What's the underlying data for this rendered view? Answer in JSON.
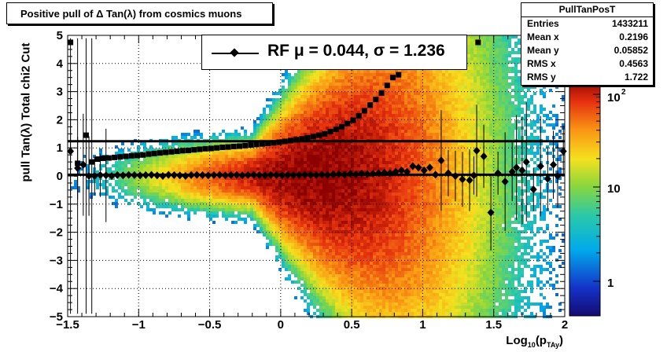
{
  "title": "Positive pull of Δ Tan(λ) from cosmics muons",
  "stats": {
    "name": "PullTanPosT",
    "rows": [
      {
        "label": "Entries",
        "value": "1433211"
      },
      {
        "label": "Mean x",
        "value": "0.2196"
      },
      {
        "label": "Mean y",
        "value": "0.05852"
      },
      {
        "label": "RMS x",
        "value": "0.4563"
      },
      {
        "label": "RMS y",
        "value": "1.722"
      }
    ]
  },
  "legend": {
    "text": "RF μ =  0.044, σ =   1.236"
  },
  "axes": {
    "ylabel": "pull Tan(λ)  Total chi2 Cut",
    "xlabel": "Log10(pTAy)"
  },
  "chart_data": {
    "type": "heatmap",
    "title": "Positive pull of Δ Tan(λ) from cosmics muons",
    "xlabel": "Log10(pTAy)",
    "ylabel": "pull Tan(λ)  Total chi2 Cut",
    "xlim": [
      -1.5,
      2
    ],
    "ylim": [
      -5,
      5
    ],
    "x_ticks": [
      "−1.5",
      "−1",
      "−0.5",
      "0",
      "0.5",
      "1",
      "1.5",
      "2"
    ],
    "y_ticks": [
      "−5",
      "−4",
      "−3",
      "−2",
      "−1",
      "0",
      "1",
      "2",
      "3",
      "4",
      "5"
    ],
    "z_scale": "log",
    "z_ticks": [
      "1",
      "10",
      "10^2"
    ],
    "horizontal_lines": [
      1.236,
      0.044
    ],
    "series": [
      {
        "name": "sigma",
        "x": [
          -1.48,
          -1.43,
          -1.37,
          -1.33,
          -1.29,
          -1.25,
          -1.21,
          -1.17,
          -1.13,
          -1.09,
          -1.05,
          -1.01,
          -0.97,
          -0.93,
          -0.89,
          -0.85,
          -0.81,
          -0.77,
          -0.73,
          -0.69,
          -0.65,
          -0.61,
          -0.57,
          -0.53,
          -0.49,
          -0.45,
          -0.41,
          -0.37,
          -0.33,
          -0.29,
          -0.25,
          -0.21,
          -0.17,
          -0.13,
          -0.09,
          -0.05,
          -0.01,
          0.03,
          0.07,
          0.11,
          0.15,
          0.19,
          0.23,
          0.27,
          0.31,
          0.35,
          0.39,
          0.43,
          0.47,
          0.51,
          0.55,
          0.59,
          0.63,
          0.67,
          0.71,
          0.75,
          0.79,
          0.83,
          1.39
        ],
        "y": [
          4.75,
          0.45,
          1.45,
          0.5,
          0.6,
          0.63,
          0.64,
          0.66,
          0.68,
          0.7,
          0.72,
          0.73,
          0.75,
          0.78,
          0.8,
          0.82,
          0.84,
          0.86,
          0.88,
          0.9,
          0.91,
          0.93,
          0.95,
          0.97,
          0.98,
          1.0,
          1.02,
          1.03,
          1.05,
          1.06,
          1.08,
          1.1,
          1.12,
          1.14,
          1.16,
          1.18,
          1.2,
          1.23,
          1.26,
          1.29,
          1.32,
          1.36,
          1.4,
          1.45,
          1.5,
          1.58,
          1.66,
          1.75,
          1.86,
          1.98,
          2.14,
          2.32,
          2.52,
          2.72,
          2.95,
          3.22,
          3.5,
          3.6,
          4.75
        ]
      },
      {
        "name": "mean",
        "x": [
          -1.48,
          -1.43,
          -1.39,
          -1.35,
          -1.31,
          -1.27,
          -1.23,
          -1.19,
          -1.15,
          -1.11,
          -1.07,
          -1.03,
          -0.99,
          -0.95,
          -0.91,
          -0.87,
          -0.83,
          -0.79,
          -0.75,
          -0.71,
          -0.67,
          -0.63,
          -0.59,
          -0.55,
          -0.51,
          -0.47,
          -0.43,
          -0.39,
          -0.35,
          -0.31,
          -0.27,
          -0.23,
          -0.19,
          -0.15,
          -0.11,
          -0.07,
          -0.03,
          0.01,
          0.05,
          0.09,
          0.13,
          0.17,
          0.21,
          0.25,
          0.29,
          0.33,
          0.37,
          0.41,
          0.45,
          0.49,
          0.53,
          0.57,
          0.61,
          0.65,
          0.69,
          0.73,
          0.77,
          0.81,
          0.85,
          0.89,
          0.93,
          0.97,
          1.01,
          1.05,
          1.09,
          1.13,
          1.18,
          1.23,
          1.28,
          1.33,
          1.36,
          1.38,
          1.43,
          1.48,
          1.53,
          1.58,
          1.63,
          1.66,
          1.7,
          1.73,
          1.78,
          1.83,
          1.88,
          1.92,
          1.95,
          1.99
        ],
        "y": [
          0.88,
          0.28,
          0.4,
          0.0,
          0.0,
          0.03,
          0.02,
          0.0,
          0.03,
          0.02,
          0.04,
          0.03,
          0.02,
          0.03,
          0.04,
          0.02,
          0.0,
          0.04,
          0.03,
          0.02,
          0.0,
          0.03,
          0.04,
          0.03,
          0.02,
          0.03,
          0.04,
          0.02,
          0.03,
          0.04,
          0.02,
          0.03,
          0.04,
          0.03,
          0.02,
          0.04,
          0.03,
          0.02,
          0.04,
          0.03,
          0.04,
          0.05,
          0.04,
          0.03,
          0.05,
          0.04,
          0.06,
          0.07,
          0.05,
          0.08,
          0.06,
          0.09,
          0.07,
          0.08,
          0.1,
          0.12,
          0.1,
          0.15,
          0.2,
          0.15,
          0.35,
          0.3,
          0.2,
          0.3,
          0.05,
          0.55,
          0.1,
          0.0,
          -0.12,
          -0.15,
          0.02,
          0.9,
          0.7,
          -1.3,
          0.1,
          -0.2,
          0.15,
          0.3,
          0.2,
          0.5,
          -0.48,
          0.35,
          -0.1,
          0.4,
          0.0,
          0.88
        ]
      }
    ]
  }
}
